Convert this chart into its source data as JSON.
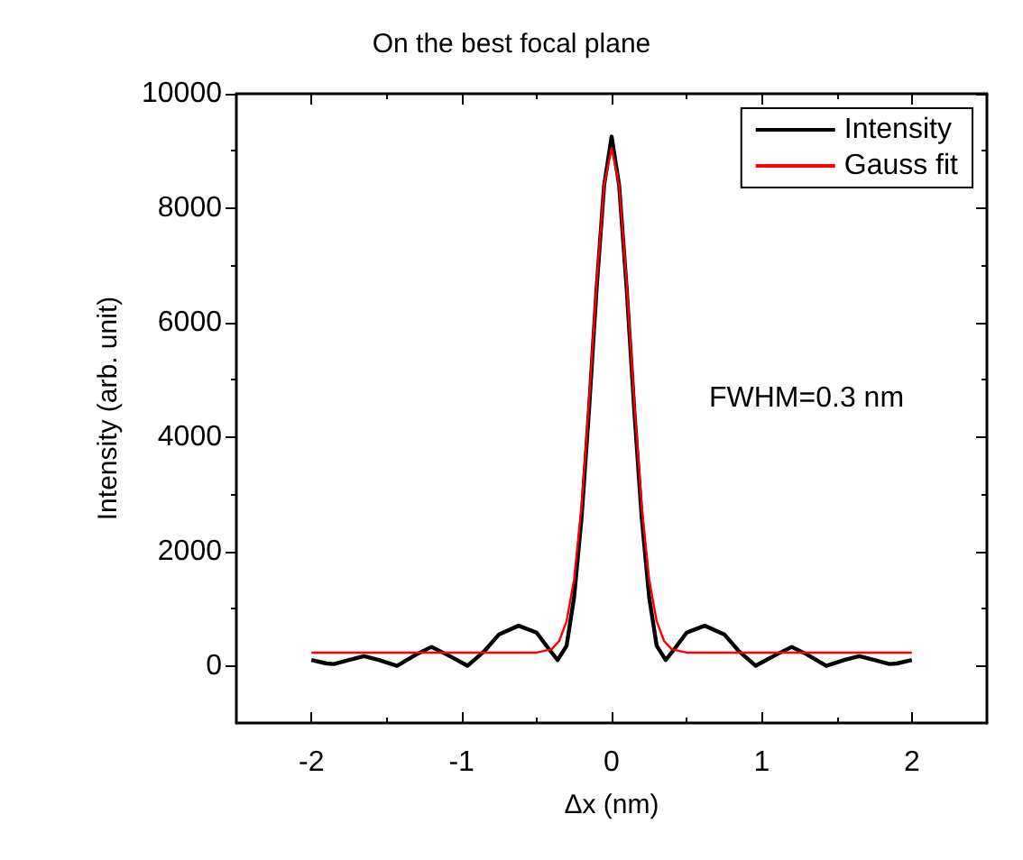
{
  "chart_data": {
    "type": "line",
    "title": "On the best focal plane",
    "xlabel": "Δx (nm)",
    "ylabel": "Intensity (arb. unit)",
    "xlim": [
      -2.5,
      2.5
    ],
    "xticks": [
      -2,
      -1,
      0,
      1,
      2
    ],
    "ylim": [
      -1000,
      10000
    ],
    "yticks": [
      0,
      2000,
      4000,
      6000,
      8000,
      10000
    ],
    "grid": false,
    "legend": "top right",
    "marker": "none",
    "line_style": "solid",
    "annotations": [
      "FWHM=0.3 nm"
    ],
    "series": [
      {
        "name": "Intensity",
        "color": "#000000",
        "x": [
          -2,
          -1.9,
          -1.85,
          -1.75,
          -1.65,
          -1.55,
          -1.43,
          -1.3,
          -1.2,
          -1.1,
          -0.96,
          -0.85,
          -0.75,
          -0.62,
          -0.5,
          -0.42,
          -0.36,
          -0.3,
          -0.25,
          -0.2,
          -0.15,
          -0.1,
          -0.05,
          0,
          0.05,
          0.1,
          0.15,
          0.2,
          0.25,
          0.3,
          0.36,
          0.42,
          0.5,
          0.62,
          0.75,
          0.85,
          0.96,
          1.1,
          1.2,
          1.3,
          1.43,
          1.55,
          1.65,
          1.75,
          1.85,
          1.9,
          2
        ],
        "values": [
          100,
          40,
          30,
          100,
          170,
          100,
          0,
          200,
          330,
          200,
          0,
          250,
          550,
          700,
          580,
          300,
          100,
          350,
          1200,
          2600,
          4500,
          6600,
          8400,
          9250,
          8400,
          6600,
          4500,
          2600,
          1200,
          350,
          100,
          300,
          580,
          700,
          550,
          250,
          0,
          200,
          330,
          200,
          0,
          100,
          170,
          100,
          30,
          40,
          100
        ]
      },
      {
        "name": "Gauss fit",
        "color": "#ff0000",
        "x": [
          -2,
          -0.5,
          -0.4,
          -0.35,
          -0.3,
          -0.25,
          -0.2,
          -0.15,
          -0.1,
          -0.05,
          0,
          0.05,
          0.1,
          0.15,
          0.2,
          0.25,
          0.3,
          0.35,
          0.4,
          0.5,
          2
        ],
        "values": [
          230,
          230,
          290,
          430,
          780,
          1510,
          2800,
          4640,
          6700,
          8400,
          9050,
          8400,
          6700,
          4640,
          2800,
          1510,
          780,
          430,
          290,
          230,
          230
        ]
      }
    ]
  }
}
